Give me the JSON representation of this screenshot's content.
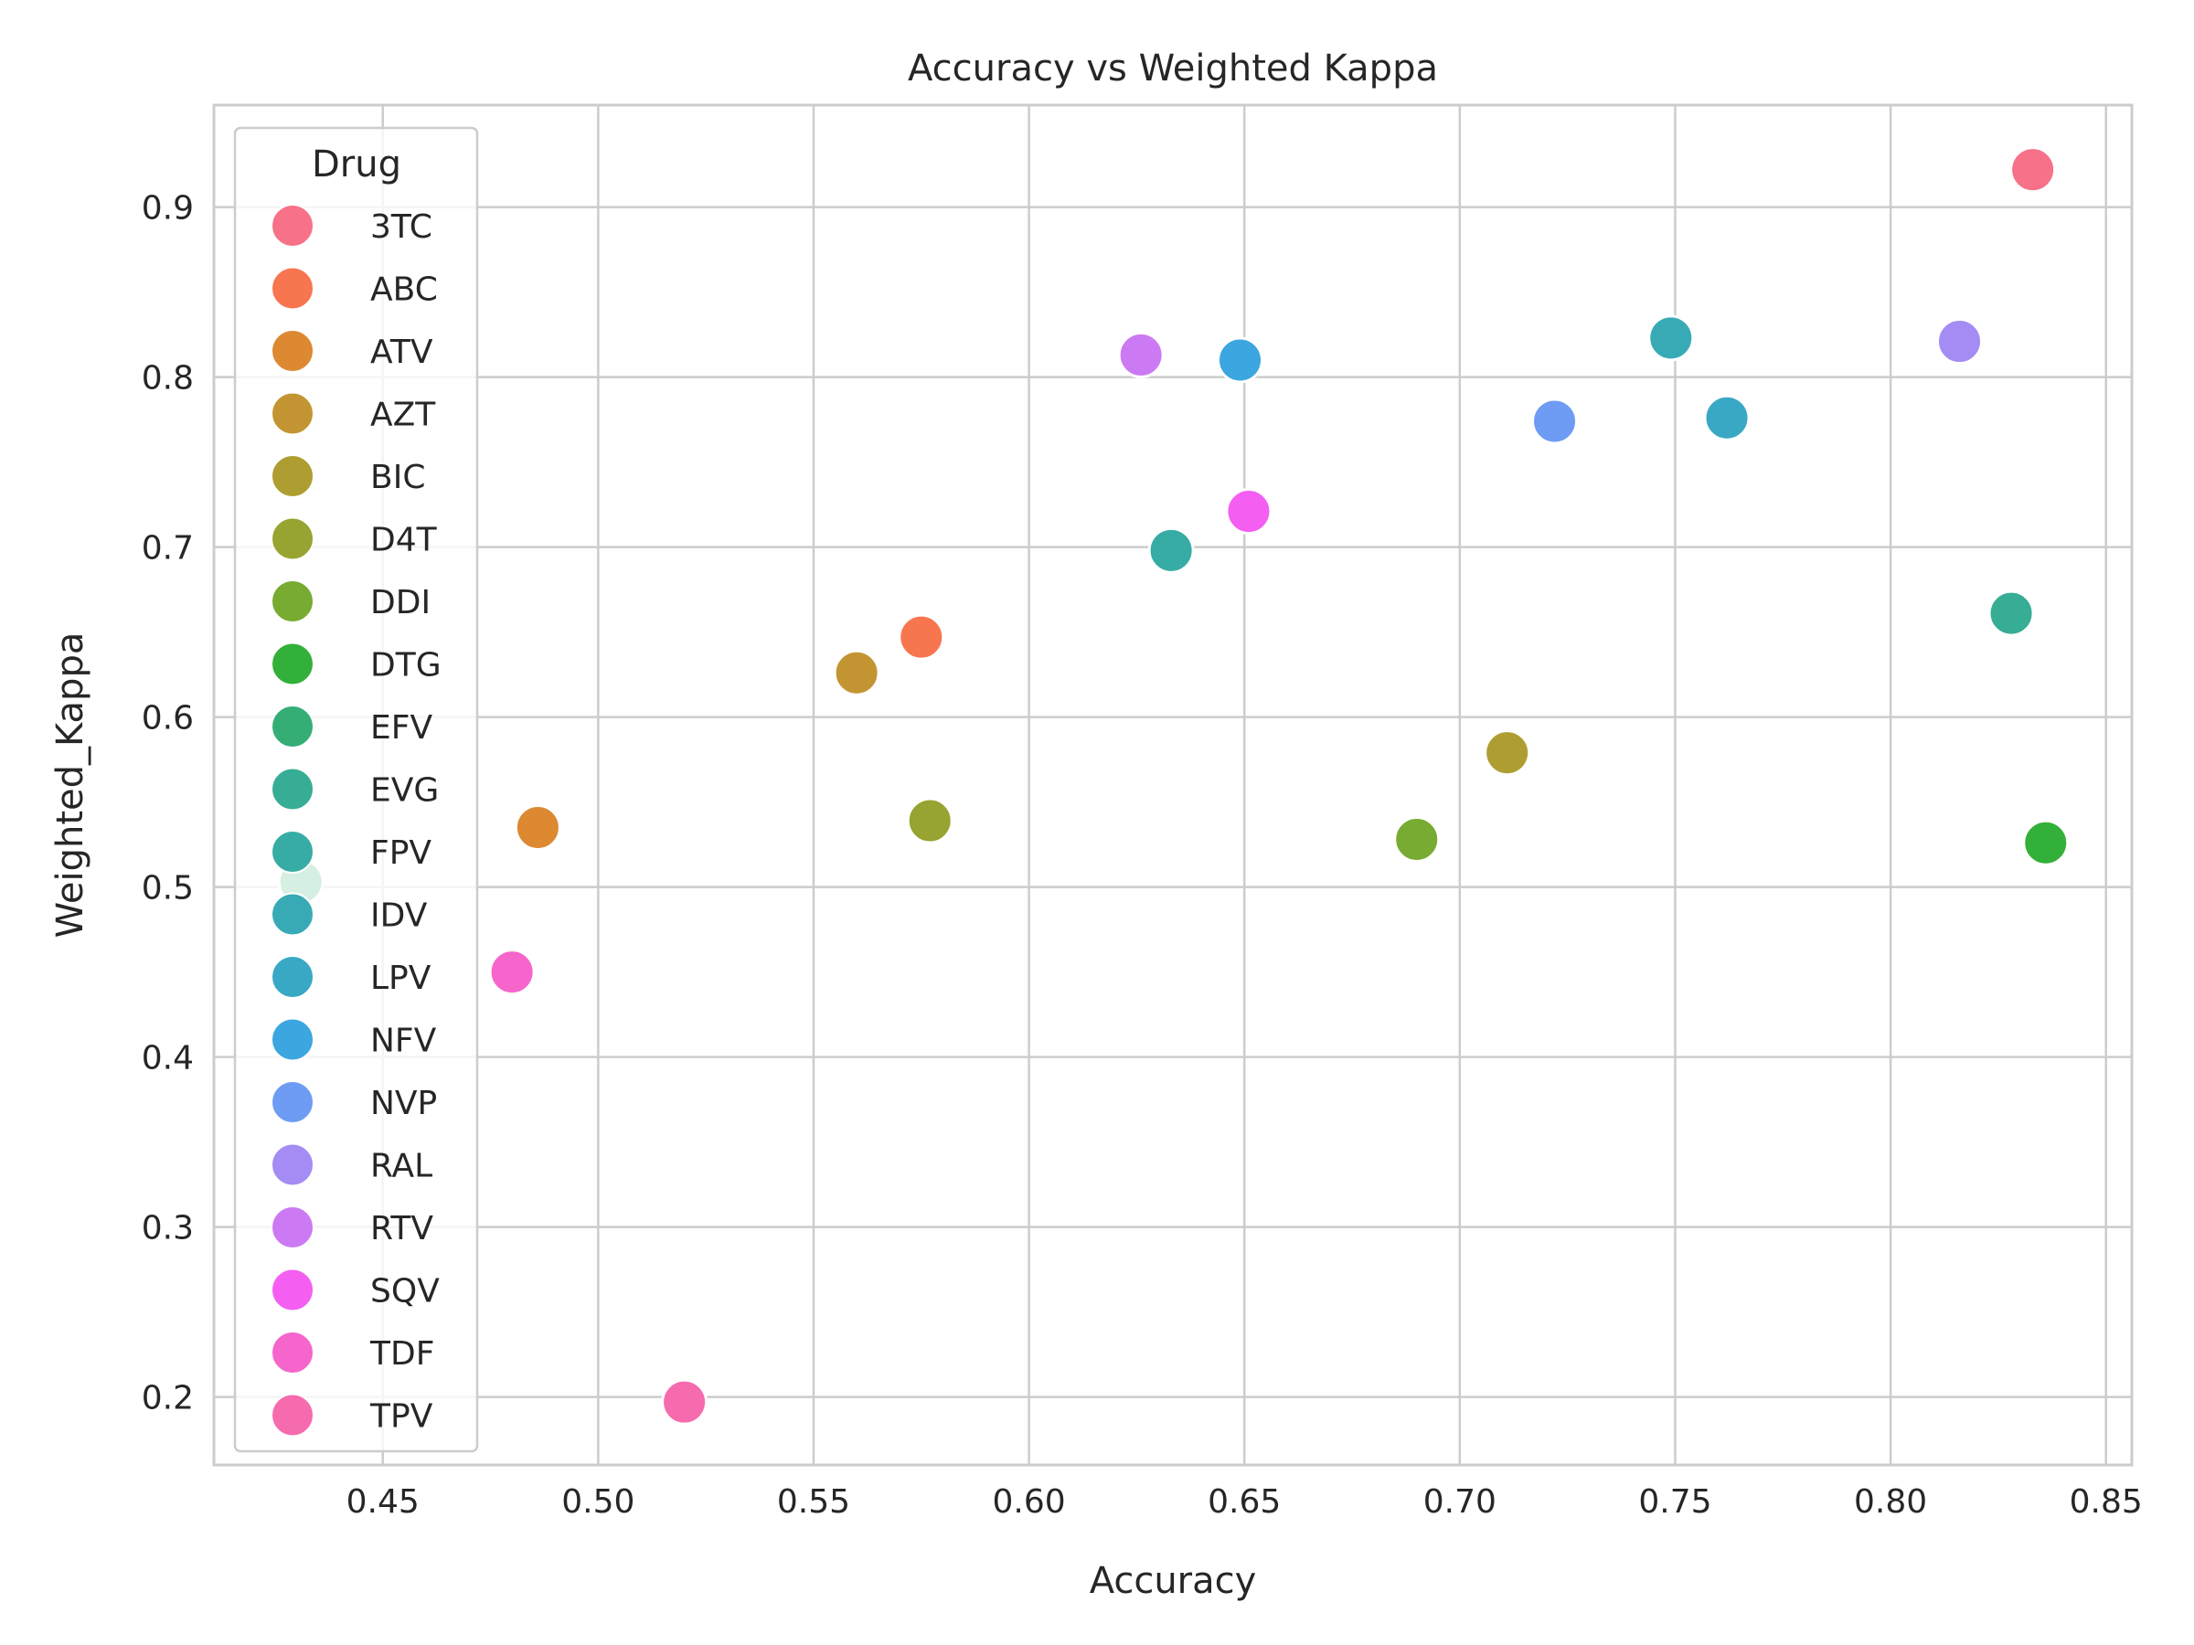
{
  "chart_data": {
    "type": "scatter",
    "title": "Accuracy vs Weighted Kappa",
    "xlabel": "Accuracy",
    "ylabel": "Weighted_Kappa",
    "xlim": [
      0.4108,
      0.856
    ],
    "ylim": [
      0.16,
      0.96
    ],
    "xticks": [
      "0.45",
      "0.50",
      "0.55",
      "0.60",
      "0.65",
      "0.70",
      "0.75",
      "0.80",
      "0.85"
    ],
    "yticks": [
      "0.2",
      "0.3",
      "0.4",
      "0.5",
      "0.6",
      "0.7",
      "0.8",
      "0.9"
    ],
    "grid": true,
    "legend": {
      "title": "Drug",
      "placement": "upper-left"
    },
    "series": [
      {
        "name": "3TC",
        "color": "#f77189",
        "x": 0.833,
        "y": 0.922
      },
      {
        "name": "ABC",
        "color": "#f7754f",
        "x": 0.575,
        "y": 0.647
      },
      {
        "name": "ATV",
        "color": "#dc8932",
        "x": 0.486,
        "y": 0.535
      },
      {
        "name": "AZT",
        "color": "#c39532",
        "x": 0.56,
        "y": 0.626
      },
      {
        "name": "BIC",
        "color": "#ae9d31",
        "x": 0.711,
        "y": 0.579
      },
      {
        "name": "D4T",
        "color": "#97a431",
        "x": 0.577,
        "y": 0.539
      },
      {
        "name": "DDI",
        "color": "#77ab31",
        "x": 0.69,
        "y": 0.528
      },
      {
        "name": "DTG",
        "color": "#33b039",
        "x": 0.836,
        "y": 0.526
      },
      {
        "name": "EFV",
        "color": "#35ae76",
        "x": 0.431,
        "y": 0.503
      },
      {
        "name": "EVG",
        "color": "#36ad94",
        "x": 0.828,
        "y": 0.661
      },
      {
        "name": "FPV",
        "color": "#37aca5",
        "x": 0.633,
        "y": 0.698
      },
      {
        "name": "IDV",
        "color": "#38aab5",
        "x": 0.749,
        "y": 0.823
      },
      {
        "name": "LPV",
        "color": "#39a8c5",
        "x": 0.762,
        "y": 0.776
      },
      {
        "name": "NFV",
        "color": "#3ba6df",
        "x": 0.649,
        "y": 0.81
      },
      {
        "name": "NVP",
        "color": "#6e9bf4",
        "x": 0.722,
        "y": 0.774
      },
      {
        "name": "RAL",
        "color": "#a48cf4",
        "x": 0.816,
        "y": 0.821
      },
      {
        "name": "RTV",
        "color": "#cc7af4",
        "x": 0.626,
        "y": 0.813
      },
      {
        "name": "SQV",
        "color": "#f45ff2",
        "x": 0.651,
        "y": 0.721
      },
      {
        "name": "TDF",
        "color": "#f565cc",
        "x": 0.48,
        "y": 0.45
      },
      {
        "name": "TPV",
        "color": "#f66bad",
        "x": 0.52,
        "y": 0.197
      }
    ]
  }
}
